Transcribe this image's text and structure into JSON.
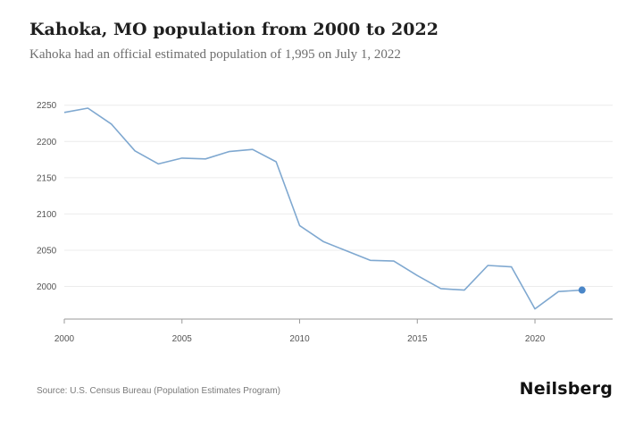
{
  "header": {
    "title": "Kahoka, MO population from 2000 to 2022",
    "subtitle": "Kahoka had an official estimated population of 1,995 on July 1, 2022"
  },
  "footer": {
    "source": "Source: U.S. Census Bureau (Population Estimates Program)",
    "brand": "Neilsberg"
  },
  "colors": {
    "line": "#7fa8d0",
    "marker": "#4a86c8",
    "grid": "#ececec",
    "axis": "#9a9a9a"
  },
  "chart_data": {
    "type": "line",
    "title": "Kahoka, MO population from 2000 to 2022",
    "subtitle": "Kahoka had an official estimated population of 1,995 on July 1, 2022",
    "xlabel": "",
    "ylabel": "",
    "xlim": [
      2000,
      2023.3
    ],
    "ylim": [
      1955,
      2262
    ],
    "x_ticks": [
      2000,
      2005,
      2010,
      2015,
      2020
    ],
    "y_ticks": [
      2000,
      2050,
      2100,
      2150,
      2200,
      2250
    ],
    "grid": "horizontal",
    "legend": "none",
    "series": [
      {
        "x": [
          2000,
          2001,
          2002,
          2003,
          2004,
          2005,
          2006,
          2007,
          2008,
          2009,
          2010,
          2011,
          2012,
          2013,
          2014,
          2015,
          2016,
          2017,
          2018,
          2019,
          2020,
          2021,
          2022
        ],
        "values": [
          2240,
          2246,
          2224,
          2187,
          2169,
          2177,
          2176,
          2186,
          2189,
          2172,
          2084,
          2062,
          2049,
          2036,
          2035,
          2015,
          1997,
          1995,
          2029,
          2027,
          1969,
          1993,
          1995
        ]
      }
    ],
    "highlight": {
      "x": 2022,
      "value": 1995
    }
  }
}
